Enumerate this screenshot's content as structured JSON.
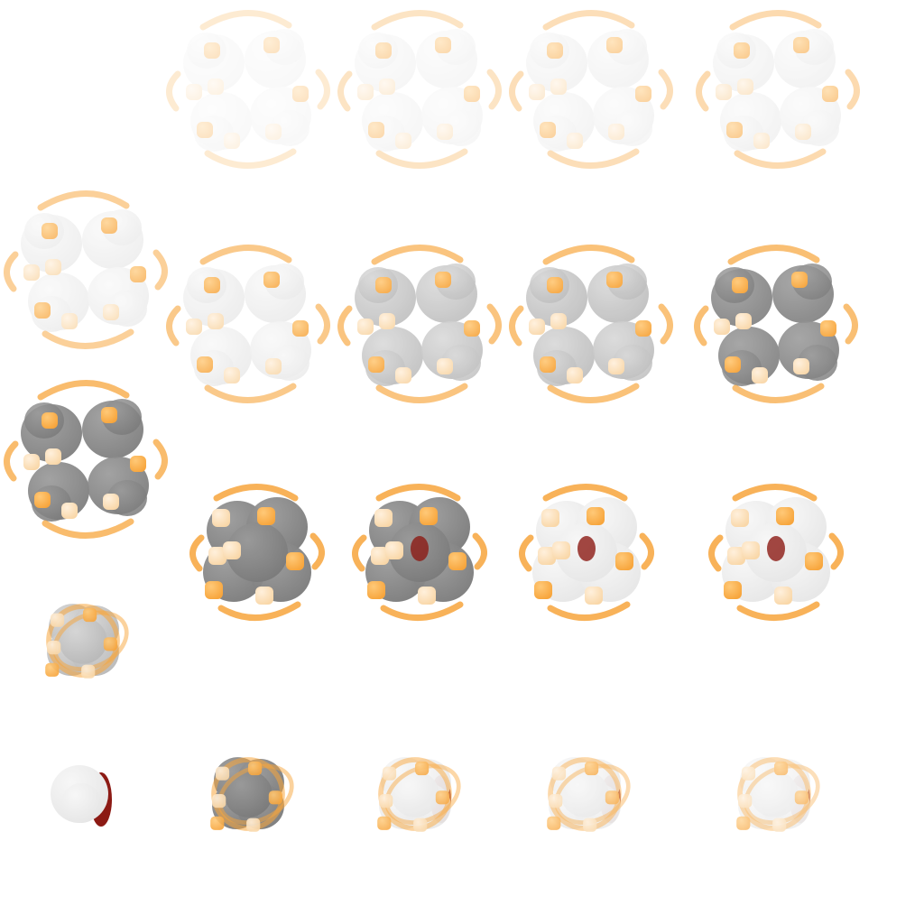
{
  "sheet": {
    "background": "#ffffff",
    "palette": {
      "body_light": "#e6e6e6",
      "body_mid": "#b8b8b8",
      "body_dark": "#7a7a7a",
      "accent_orange": "#f7a53c",
      "accent_peach": "#f9d7a8",
      "core_red": "#8c1a14"
    },
    "frames": [
      {
        "row": 0,
        "col": 1,
        "state": "ring",
        "opacity": 0.3,
        "shade": "light"
      },
      {
        "row": 0,
        "col": 2,
        "state": "ring",
        "opacity": 0.4,
        "shade": "light"
      },
      {
        "row": 0,
        "col": 3,
        "state": "ring",
        "opacity": 0.48,
        "shade": "light"
      },
      {
        "row": 0,
        "col": 4,
        "state": "ring",
        "opacity": 0.55,
        "shade": "light"
      },
      {
        "row": 1,
        "col": 0,
        "state": "ring",
        "opacity": 0.7,
        "shade": "light"
      },
      {
        "row": 1,
        "col": 1,
        "state": "ring",
        "opacity": 0.8,
        "shade": "light"
      },
      {
        "row": 1,
        "col": 2,
        "state": "ring",
        "opacity": 0.88,
        "shade": "mid"
      },
      {
        "row": 1,
        "col": 3,
        "state": "ring",
        "opacity": 0.92,
        "shade": "mid"
      },
      {
        "row": 1,
        "col": 4,
        "state": "ring",
        "opacity": 0.95,
        "shade": "dark"
      },
      {
        "row": 2,
        "col": 0,
        "state": "ring",
        "opacity": 1.0,
        "shade": "dark"
      },
      {
        "row": 2,
        "col": 1,
        "state": "cluster",
        "opacity": 1.0,
        "shade": "dark"
      },
      {
        "row": 2,
        "col": 2,
        "state": "cluster",
        "opacity": 1.0,
        "shade": "dark",
        "core": true
      },
      {
        "row": 2,
        "col": 3,
        "state": "cluster",
        "opacity": 1.0,
        "shade": "light",
        "core": true
      },
      {
        "row": 2,
        "col": 4,
        "state": "cluster",
        "opacity": 1.0,
        "shade": "light",
        "core": true
      },
      {
        "row": 3,
        "col": 0,
        "state": "compact",
        "opacity": 1.0,
        "shade": "mid"
      },
      {
        "row": 4,
        "col": 0,
        "state": "orb",
        "opacity": 1.0,
        "shade": "light",
        "core": true
      },
      {
        "row": 4,
        "col": 1,
        "state": "compact",
        "opacity": 1.0,
        "shade": "dark"
      },
      {
        "row": 4,
        "col": 2,
        "state": "compact",
        "opacity": 0.9,
        "shade": "light",
        "core": true
      },
      {
        "row": 4,
        "col": 3,
        "state": "compact",
        "opacity": 0.8,
        "shade": "light",
        "core": true
      },
      {
        "row": 4,
        "col": 4,
        "state": "compact",
        "opacity": 0.7,
        "shade": "light",
        "core": true
      }
    ]
  }
}
